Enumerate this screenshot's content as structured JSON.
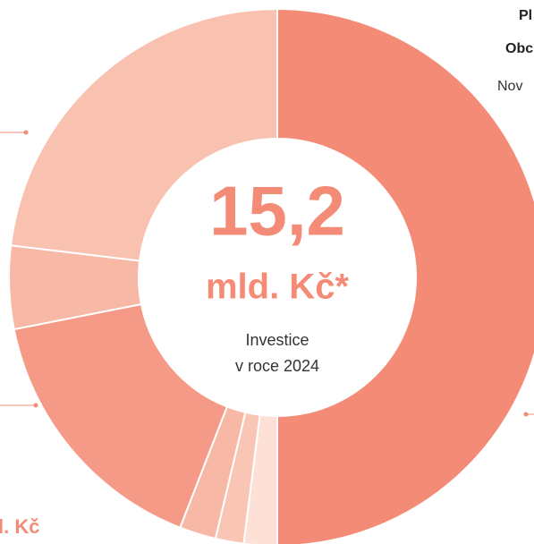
{
  "chart_data": {
    "type": "pie",
    "donut": true,
    "values": [
      50,
      2,
      1.7,
      2.2,
      16,
      5,
      23.1
    ],
    "colors": [
      "#f48b77",
      "#fde0d6",
      "#f9c6b6",
      "#f8b8a6",
      "#f59a86",
      "#f7b8a6",
      "#f9c1af"
    ],
    "center_value": "15,2",
    "center_unit": "mld. Kč*",
    "center_note_1": "Investice",
    "center_note_2": "v roce 2024",
    "edge_labels": [
      "Pl",
      "Obc",
      "Nov",
      "l. Kč"
    ]
  }
}
